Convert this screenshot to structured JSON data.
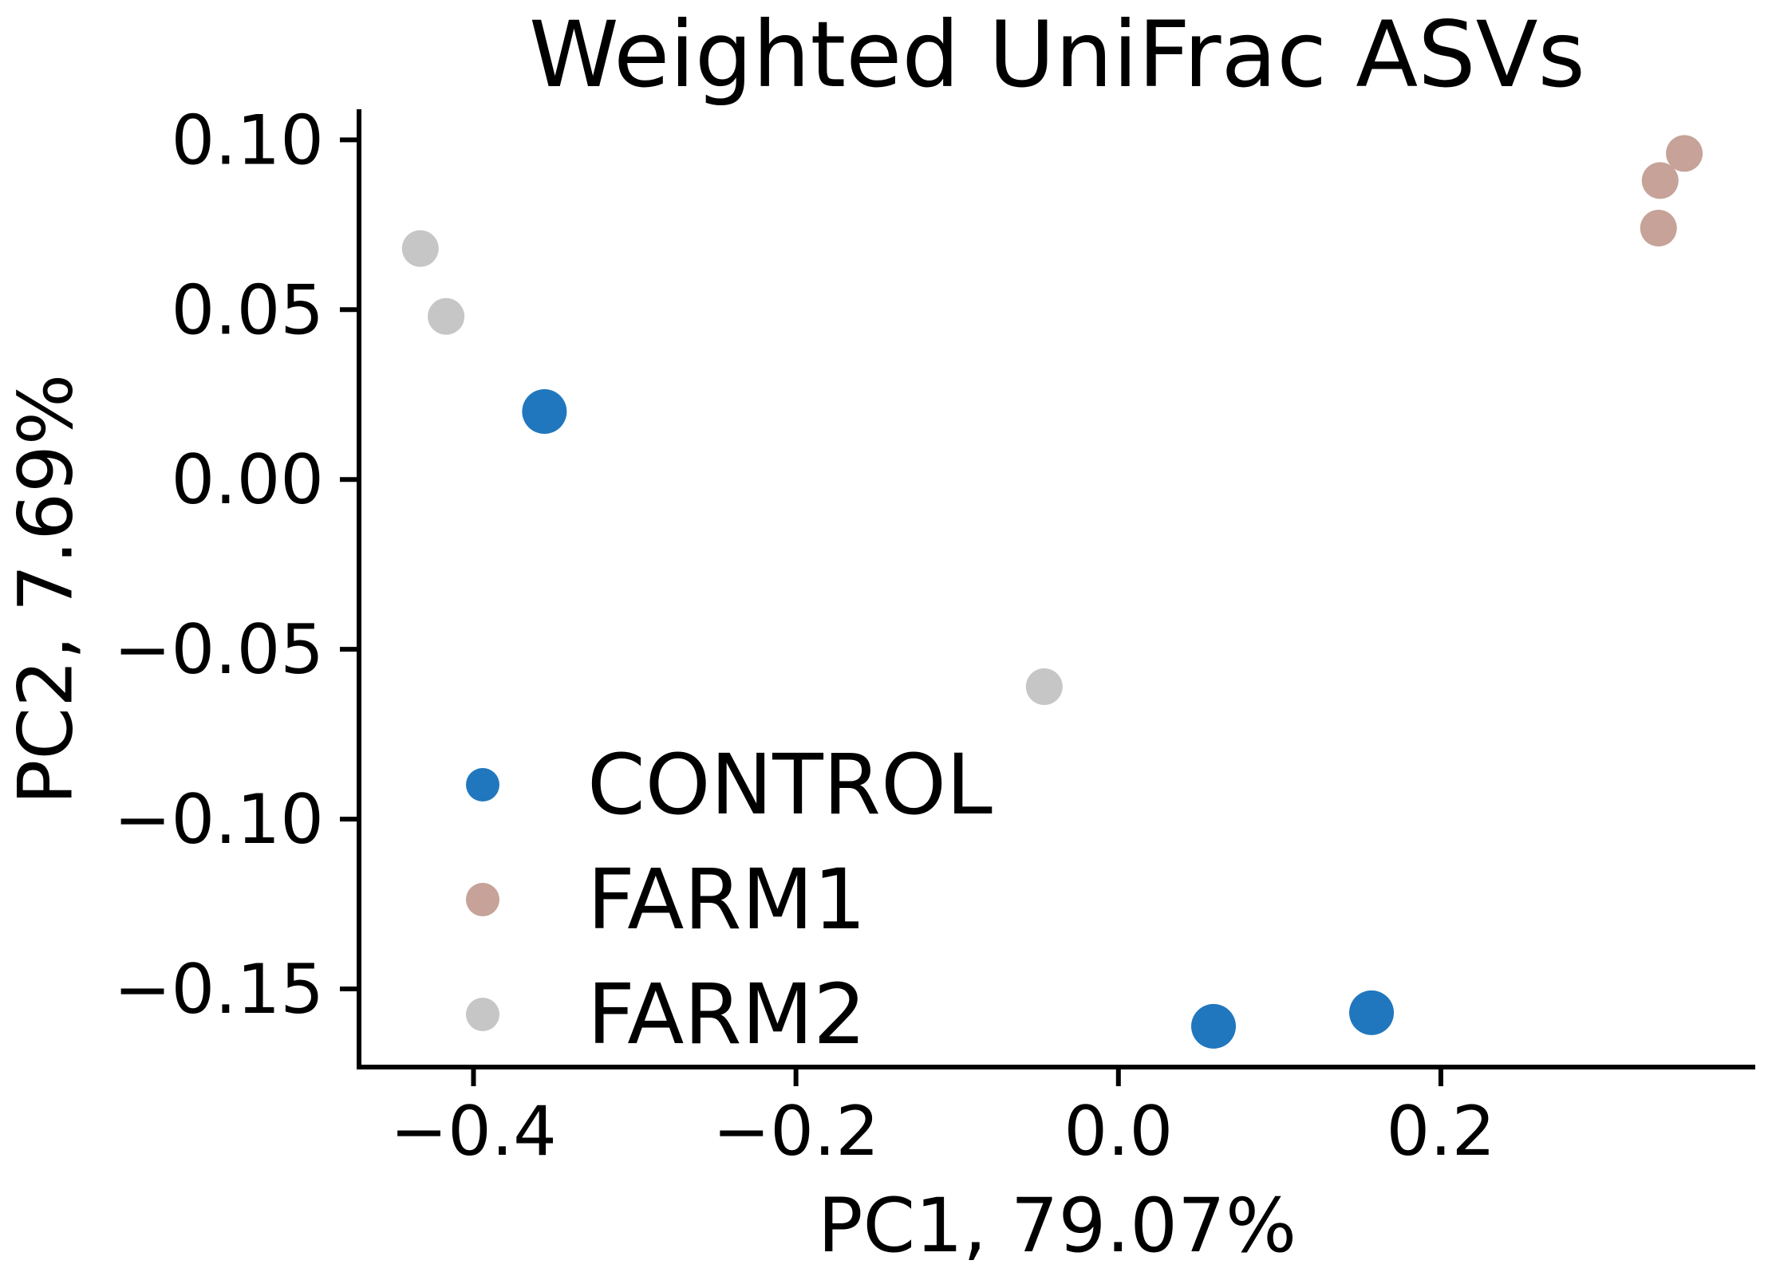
{
  "title": "Weighted UniFrac ASVs",
  "chart_data": {
    "type": "scatter",
    "title": "Weighted UniFrac ASVs",
    "xlabel": "PC1, 79.07%",
    "ylabel": "PC2, 7.69%",
    "xlim": [
      -0.471,
      0.395
    ],
    "ylim": [
      -0.173,
      0.109
    ],
    "grid": false,
    "background": "#ffffff",
    "axis_color": "#000000",
    "xticks": {
      "values": [
        -0.4,
        -0.2,
        0.0,
        0.2
      ],
      "labels": [
        "−0.4",
        "−0.2",
        "0.0",
        "0.2"
      ]
    },
    "yticks": {
      "values": [
        0.1,
        0.05,
        0.0,
        -0.05,
        -0.1,
        -0.15
      ],
      "labels": [
        "0.10",
        "0.05",
        "0.00",
        "−0.05",
        "−0.10",
        "−0.15"
      ]
    },
    "legend": {
      "position": "inside-center-left",
      "entries": [
        "CONTROL",
        "FARM1",
        "FARM2"
      ]
    },
    "series": [
      {
        "name": "CONTROL",
        "color": "#2177bd",
        "marker_radius_px": 28,
        "points": [
          [
            -0.356,
            0.02
          ],
          [
            0.059,
            -0.161
          ],
          [
            0.157,
            -0.157
          ]
        ]
      },
      {
        "name": "FARM1",
        "color": "#c6a298",
        "marker_radius_px": 23,
        "points": [
          [
            0.351,
            0.096
          ],
          [
            0.336,
            0.088
          ],
          [
            0.335,
            0.074
          ]
        ]
      },
      {
        "name": "FARM2",
        "color": "#c6c6c6",
        "marker_radius_px": 23,
        "points": [
          [
            -0.433,
            0.068
          ],
          [
            -0.417,
            0.048
          ],
          [
            -0.046,
            -0.061
          ]
        ]
      }
    ]
  }
}
